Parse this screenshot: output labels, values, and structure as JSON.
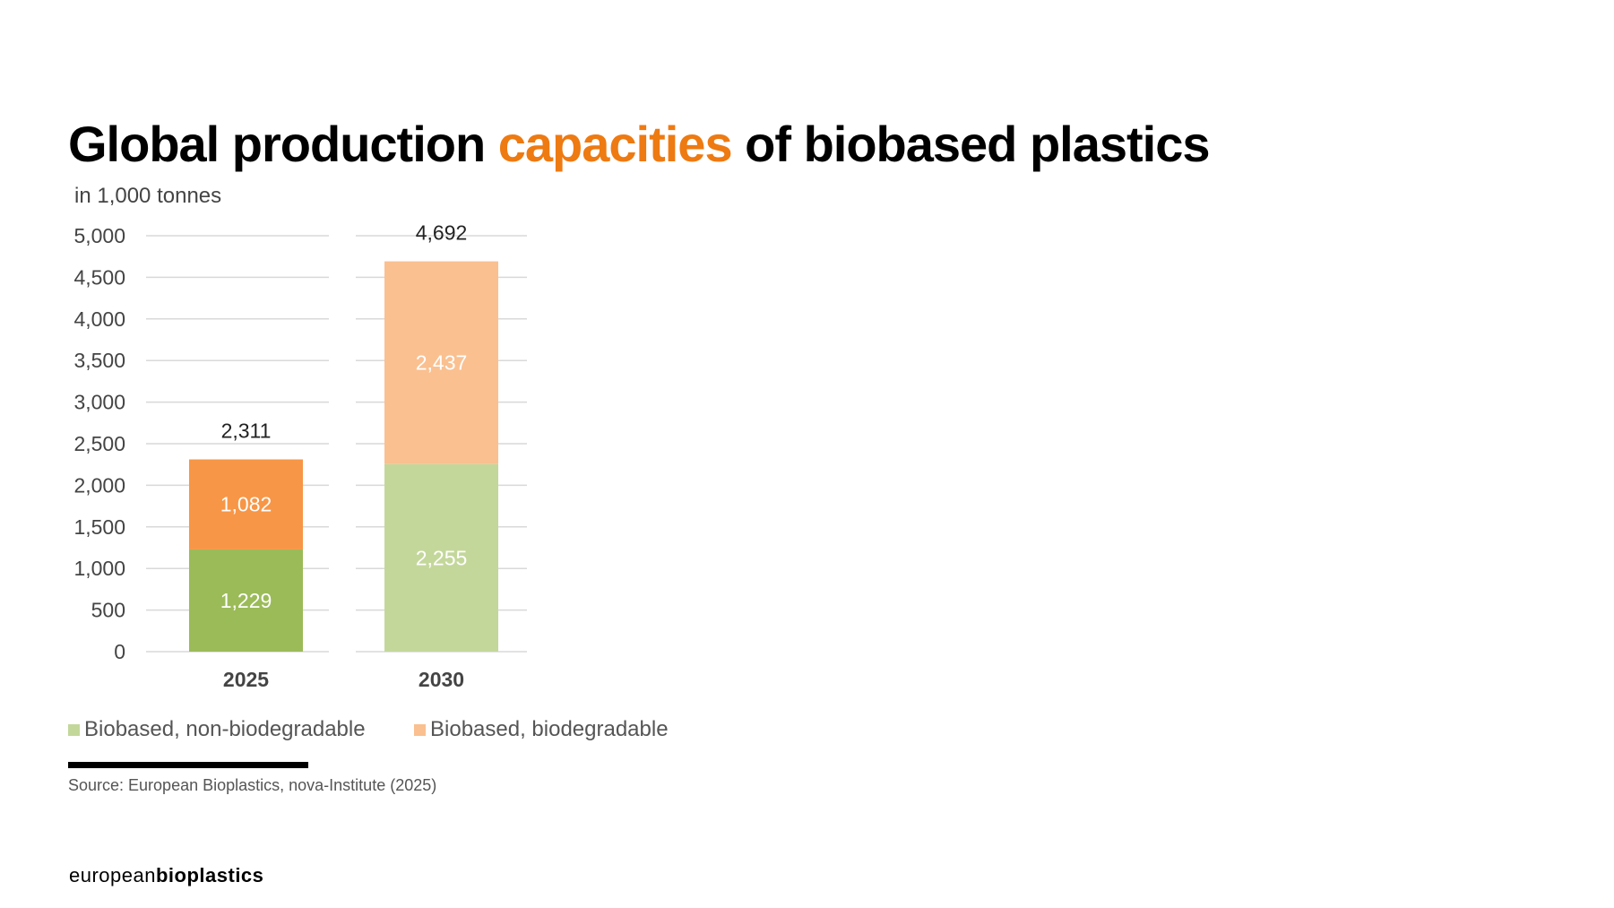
{
  "title": {
    "part1": "Global production ",
    "highlight": "capacities",
    "part2": " of biobased plastics"
  },
  "subtitle": "in 1,000 tonnes",
  "chart_data": {
    "type": "bar",
    "stacked": true,
    "title": "Global production capacities of biobased plastics",
    "ylabel": "in 1,000 tonnes",
    "categories": [
      "2025",
      "2030"
    ],
    "series": [
      {
        "name": "Biobased, non-biodegradable",
        "values": [
          1229,
          2255
        ],
        "labels": [
          "1,229",
          "2,255"
        ],
        "colors": [
          "#9bbb59",
          "#c4d79b"
        ]
      },
      {
        "name": "Biobased, biodegradable",
        "values": [
          1082,
          2437
        ],
        "labels": [
          "1,082",
          "2,437"
        ],
        "colors": [
          "#f79646",
          "#fac090"
        ]
      }
    ],
    "totals": [
      2311,
      4692
    ],
    "total_labels": [
      "2,311",
      "4,692"
    ],
    "ylim": [
      0,
      5000
    ],
    "yticks": [
      "0",
      "500",
      "1,000",
      "1,500",
      "2,000",
      "2,500",
      "3,000",
      "3,500",
      "4,000",
      "4,500",
      "5,000"
    ],
    "grid": true,
    "legend_position": "bottom-left"
  },
  "legend": [
    {
      "label": "Biobased, non-biodegradable",
      "color": "#c4d79b"
    },
    {
      "label": "Biobased, biodegradable",
      "color": "#fac090"
    }
  ],
  "source": "Source: European Bioplastics, nova-Institute (2025)",
  "logo": {
    "part1": "european",
    "part2": "bioplastics"
  }
}
